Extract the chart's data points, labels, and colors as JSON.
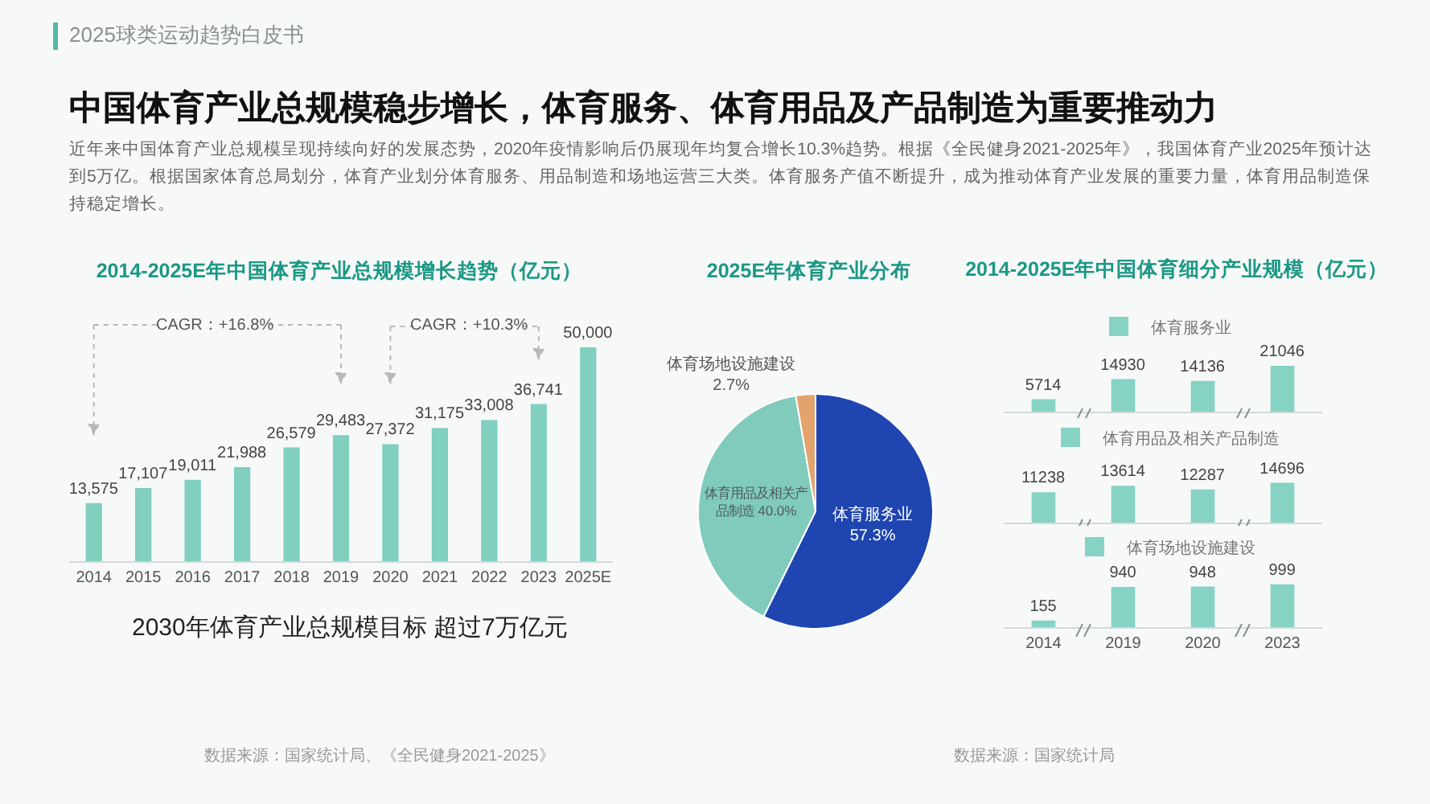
{
  "chart_data": [
    {
      "type": "other",
      "title": "中国体育产业总规模稳步增长，体育服务、体育用品及产品制造为重要推动力",
      "subtitle": "近年来中国体育产业总规模呈现持续向好的发展态势，2020年疫情影响后仍展现年均复合增长10.3%趋势。根据《全民健身2021-2025年》，我国体育产业2025年预计达到5万亿。根据国家体育总局划分，体育产业划分体育服务、用品制造和场地运营三大类。体育服务产值不断提升，成为推动体育产业发展的重要力量，体育用品制造保持稳定增长。",
      "annotations": [
        "2025球类运动趋势白皮书"
      ]
    },
    {
      "type": "bar",
      "title": "2014-2025E年中国体育产业总规模增长趋势（亿元）",
      "categories": [
        "2014",
        "2015",
        "2016",
        "2017",
        "2018",
        "2019",
        "2020",
        "2021",
        "2022",
        "2023",
        "2025E"
      ],
      "values": [
        13575,
        17107,
        19011,
        21988,
        26579,
        29483,
        27372,
        31175,
        33008,
        36741,
        50000
      ],
      "value_labels": [
        "13,575",
        "17,107",
        "19,011",
        "21,988",
        "26,579",
        "29,483",
        "27,372",
        "31,175",
        "33,008",
        "36,741",
        "50,000"
      ],
      "color": "#80cfbf",
      "tick_labels": "x",
      "annotations": [
        "CAGR：+16.8%",
        "CAGR：+10.3%",
        "2030年体育产业总规模目标 超过7万亿元",
        "数据来源：国家统计局、《全民健身2021-2025》"
      ]
    },
    {
      "type": "pie",
      "title": "2025E年体育产业分布",
      "categories": [
        "体育服务业",
        "体育用品及相关产品制造",
        "体育场地设施建设"
      ],
      "values": [
        57.3,
        40.0,
        2.7
      ],
      "value_labels": [
        "57.3%",
        "40.0%",
        "2.7%"
      ],
      "colors": [
        "#1e45b0",
        "#80cbbb",
        "#e2a36c"
      ]
    },
    {
      "type": "bar",
      "title": "2014-2025E年中国体育细分产业规模（亿元）",
      "categories": [
        "2014",
        "2019",
        "2020",
        "2023"
      ],
      "series": [
        {
          "name": "体育服务业",
          "color": "#86d2c3",
          "values": [
            5714,
            14930,
            14136,
            21046
          ]
        }
      ],
      "data_labels": true,
      "legend": "top",
      "tick_labels": false
    },
    {
      "type": "bar",
      "categories": [
        "2014",
        "2019",
        "2020",
        "2023"
      ],
      "series": [
        {
          "name": "体育用品及相关产品制造",
          "color": "#86d2c3",
          "values": [
            11238,
            13614,
            12287,
            14696
          ]
        }
      ],
      "data_labels": true,
      "legend": "top",
      "tick_labels": false
    },
    {
      "type": "bar",
      "categories": [
        "2014",
        "2019",
        "2020",
        "2023"
      ],
      "series": [
        {
          "name": "体育场地设施建设",
          "color": "#86d2c3",
          "values": [
            155,
            940,
            948,
            999
          ]
        }
      ],
      "data_labels": true,
      "legend": "top",
      "tick_labels": "x",
      "annotations": [
        "数据来源：国家统计局"
      ]
    }
  ]
}
